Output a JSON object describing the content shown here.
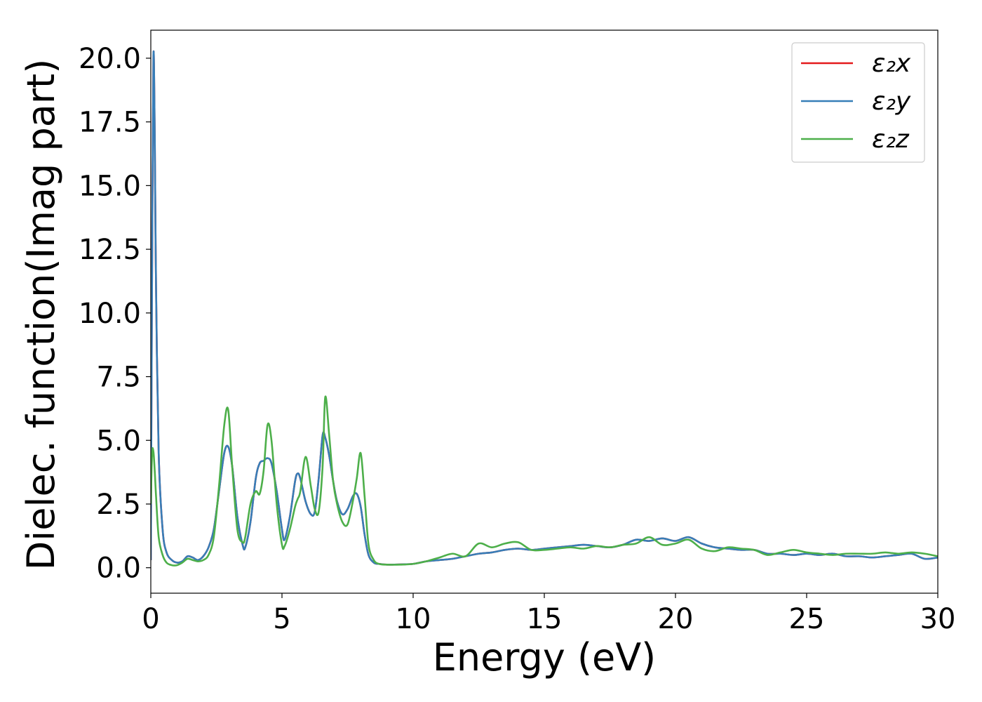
{
  "chart_data": {
    "type": "line",
    "xlabel": "Energy (eV)",
    "ylabel": "Dielec. function(Imag part)",
    "xlim": [
      0,
      30
    ],
    "ylim": [
      -1.0,
      21.1
    ],
    "xticks": [
      "0",
      "5",
      "10",
      "15",
      "20",
      "25",
      "30"
    ],
    "yticks": [
      "0.0",
      "2.5",
      "5.0",
      "7.5",
      "10.0",
      "12.5",
      "15.0",
      "17.5",
      "20.0"
    ],
    "grid": false,
    "legend_position": "top-right",
    "series": [
      {
        "name": "ε₂x",
        "color": "#e41a1c",
        "x": [
          0,
          0.05,
          0.1,
          0.15,
          0.2,
          0.3,
          0.45,
          0.6,
          0.8,
          1.0,
          1.2,
          1.4,
          1.6,
          1.8,
          2.0,
          2.2,
          2.4,
          2.6,
          2.8,
          2.95,
          3.1,
          3.3,
          3.5,
          3.6,
          3.8,
          4.0,
          4.15,
          4.3,
          4.45,
          4.6,
          4.8,
          5.0,
          5.1,
          5.3,
          5.5,
          5.6,
          5.7,
          5.9,
          6.1,
          6.25,
          6.4,
          6.55,
          6.65,
          6.8,
          6.95,
          7.1,
          7.3,
          7.5,
          7.7,
          7.85,
          8.0,
          8.15,
          8.3,
          8.5,
          8.7,
          9.0,
          9.5,
          10.0,
          10.5,
          11.0,
          11.5,
          12.0,
          12.5,
          13.0,
          13.5,
          14.0,
          14.5,
          15.0,
          15.5,
          16.0,
          16.5,
          17.0,
          17.5,
          18.0,
          18.5,
          19.0,
          19.5,
          20.0,
          20.5,
          21.0,
          21.5,
          22.0,
          22.5,
          23.0,
          23.5,
          24.0,
          24.5,
          25.0,
          25.5,
          26.0,
          26.5,
          27.0,
          27.5,
          28.0,
          28.5,
          29.0,
          29.5,
          30.0
        ],
        "values": [
          0.3,
          12.0,
          20.1,
          17.0,
          11.0,
          4.5,
          1.5,
          0.6,
          0.3,
          0.2,
          0.25,
          0.45,
          0.4,
          0.3,
          0.45,
          0.8,
          1.5,
          3.0,
          4.5,
          4.75,
          4.0,
          2.0,
          0.9,
          0.8,
          1.8,
          3.5,
          4.1,
          4.2,
          4.3,
          4.1,
          3.0,
          1.5,
          1.1,
          2.0,
          3.4,
          3.7,
          3.5,
          2.6,
          2.1,
          2.2,
          3.5,
          5.2,
          5.1,
          4.4,
          3.4,
          2.6,
          2.1,
          2.3,
          2.8,
          2.9,
          2.4,
          1.3,
          0.5,
          0.2,
          0.15,
          0.12,
          0.13,
          0.15,
          0.25,
          0.3,
          0.35,
          0.45,
          0.55,
          0.6,
          0.7,
          0.75,
          0.7,
          0.75,
          0.8,
          0.85,
          0.9,
          0.85,
          0.8,
          0.9,
          1.1,
          1.05,
          1.15,
          1.05,
          1.2,
          0.95,
          0.8,
          0.75,
          0.7,
          0.7,
          0.55,
          0.55,
          0.5,
          0.55,
          0.5,
          0.55,
          0.45,
          0.45,
          0.4,
          0.45,
          0.5,
          0.55,
          0.35,
          0.4
        ]
      },
      {
        "name": "ε₂y",
        "color": "#377eb8",
        "x": [
          0,
          0.05,
          0.1,
          0.15,
          0.2,
          0.3,
          0.45,
          0.6,
          0.8,
          1.0,
          1.2,
          1.4,
          1.6,
          1.8,
          2.0,
          2.2,
          2.4,
          2.6,
          2.8,
          2.95,
          3.1,
          3.3,
          3.5,
          3.6,
          3.8,
          4.0,
          4.15,
          4.3,
          4.45,
          4.6,
          4.8,
          5.0,
          5.1,
          5.3,
          5.5,
          5.6,
          5.7,
          5.9,
          6.1,
          6.25,
          6.4,
          6.55,
          6.65,
          6.8,
          6.95,
          7.1,
          7.3,
          7.5,
          7.7,
          7.85,
          8.0,
          8.15,
          8.3,
          8.5,
          8.7,
          9.0,
          9.5,
          10.0,
          10.5,
          11.0,
          11.5,
          12.0,
          12.5,
          13.0,
          13.5,
          14.0,
          14.5,
          15.0,
          15.5,
          16.0,
          16.5,
          17.0,
          17.5,
          18.0,
          18.5,
          19.0,
          19.5,
          20.0,
          20.5,
          21.0,
          21.5,
          22.0,
          22.5,
          23.0,
          23.5,
          24.0,
          24.5,
          25.0,
          25.5,
          26.0,
          26.5,
          27.0,
          27.5,
          28.0,
          28.5,
          29.0,
          29.5,
          30.0
        ],
        "values": [
          0.3,
          12.0,
          20.1,
          17.0,
          11.0,
          4.5,
          1.5,
          0.6,
          0.3,
          0.2,
          0.25,
          0.45,
          0.4,
          0.3,
          0.45,
          0.8,
          1.5,
          3.0,
          4.5,
          4.75,
          4.0,
          2.0,
          0.9,
          0.8,
          1.8,
          3.5,
          4.1,
          4.2,
          4.3,
          4.1,
          3.0,
          1.5,
          1.1,
          2.0,
          3.4,
          3.7,
          3.5,
          2.6,
          2.1,
          2.2,
          3.5,
          5.2,
          5.1,
          4.4,
          3.4,
          2.6,
          2.1,
          2.3,
          2.8,
          2.9,
          2.4,
          1.3,
          0.5,
          0.2,
          0.15,
          0.12,
          0.13,
          0.15,
          0.25,
          0.3,
          0.35,
          0.45,
          0.55,
          0.6,
          0.7,
          0.75,
          0.7,
          0.75,
          0.8,
          0.85,
          0.9,
          0.85,
          0.8,
          0.9,
          1.1,
          1.05,
          1.15,
          1.05,
          1.2,
          0.95,
          0.8,
          0.75,
          0.7,
          0.7,
          0.55,
          0.55,
          0.5,
          0.55,
          0.5,
          0.55,
          0.45,
          0.45,
          0.4,
          0.45,
          0.5,
          0.55,
          0.35,
          0.4
        ]
      },
      {
        "name": "ε₂z",
        "color": "#4daf4a",
        "x": [
          0,
          0.05,
          0.1,
          0.15,
          0.2,
          0.3,
          0.45,
          0.6,
          0.8,
          1.0,
          1.2,
          1.4,
          1.6,
          1.8,
          2.0,
          2.2,
          2.4,
          2.6,
          2.8,
          2.95,
          3.1,
          3.3,
          3.5,
          3.6,
          3.8,
          4.0,
          4.15,
          4.3,
          4.45,
          4.6,
          4.8,
          5.0,
          5.1,
          5.3,
          5.5,
          5.6,
          5.7,
          5.9,
          6.1,
          6.25,
          6.4,
          6.55,
          6.65,
          6.8,
          6.95,
          7.1,
          7.3,
          7.5,
          7.7,
          7.85,
          8.0,
          8.15,
          8.3,
          8.5,
          8.7,
          9.0,
          9.5,
          10.0,
          10.5,
          11.0,
          11.5,
          12.0,
          12.5,
          13.0,
          13.5,
          14.0,
          14.5,
          15.0,
          15.5,
          16.0,
          16.5,
          17.0,
          17.5,
          18.0,
          18.5,
          19.0,
          19.5,
          20.0,
          20.5,
          21.0,
          21.5,
          22.0,
          22.5,
          23.0,
          23.5,
          24.0,
          24.5,
          25.0,
          25.5,
          26.0,
          26.5,
          27.0,
          27.5,
          28.0,
          28.5,
          29.0,
          29.5,
          30.0
        ],
        "values": [
          2.5,
          4.5,
          4.55,
          3.8,
          2.8,
          1.2,
          0.5,
          0.2,
          0.1,
          0.1,
          0.2,
          0.35,
          0.3,
          0.25,
          0.3,
          0.5,
          1.2,
          3.2,
          5.6,
          6.2,
          4.0,
          1.5,
          1.0,
          1.2,
          2.5,
          3.0,
          2.9,
          3.8,
          5.6,
          5.0,
          2.5,
          0.9,
          0.85,
          1.5,
          2.4,
          2.7,
          3.0,
          4.35,
          3.2,
          2.3,
          2.2,
          4.0,
          6.7,
          5.2,
          3.4,
          2.5,
          1.8,
          1.7,
          2.6,
          3.5,
          4.5,
          2.8,
          0.9,
          0.3,
          0.15,
          0.12,
          0.12,
          0.15,
          0.25,
          0.4,
          0.55,
          0.45,
          0.95,
          0.8,
          0.95,
          1.0,
          0.7,
          0.7,
          0.75,
          0.8,
          0.75,
          0.85,
          0.8,
          0.9,
          0.95,
          1.2,
          0.9,
          0.95,
          1.1,
          0.75,
          0.65,
          0.8,
          0.75,
          0.7,
          0.5,
          0.6,
          0.7,
          0.6,
          0.55,
          0.5,
          0.55,
          0.55,
          0.55,
          0.6,
          0.55,
          0.6,
          0.55,
          0.45
        ]
      }
    ]
  }
}
